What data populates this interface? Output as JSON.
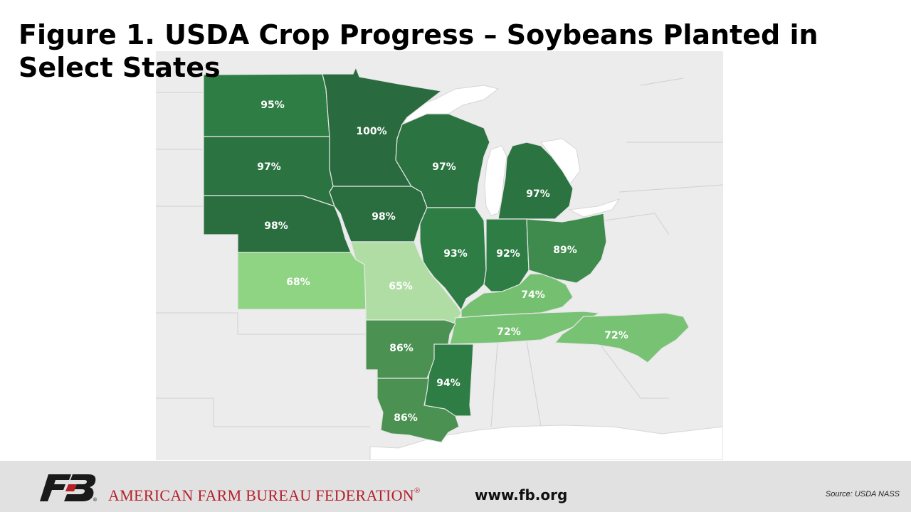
{
  "title": "Figure 1. USDA Crop Progress – Soybeans Planted in Select States",
  "colors": {
    "dark": "#2f6e3f",
    "medium_dark": "#2e7d44",
    "medium": "#4a9152",
    "light": "#7cc27a",
    "lightest": "#a8d99c",
    "background_land": "#ececec",
    "water": "#ffffff",
    "org_red": "#b5202a"
  },
  "states": [
    {
      "id": "ND",
      "value": "95%",
      "color": "#2e7d44"
    },
    {
      "id": "MN",
      "value": "100%",
      "color": "#2a6a3f"
    },
    {
      "id": "SD",
      "value": "97%",
      "color": "#2b7341"
    },
    {
      "id": "WI",
      "value": "97%",
      "color": "#2b7341"
    },
    {
      "id": "MI",
      "value": "97%",
      "color": "#2b7341"
    },
    {
      "id": "NE",
      "value": "98%",
      "color": "#2a6e3f"
    },
    {
      "id": "IA",
      "value": "98%",
      "color": "#2a6e3f"
    },
    {
      "id": "IL",
      "value": "93%",
      "color": "#2e7d44"
    },
    {
      "id": "IN",
      "value": "92%",
      "color": "#2e7d44"
    },
    {
      "id": "OH",
      "value": "89%",
      "color": "#3f8a4d"
    },
    {
      "id": "KS",
      "value": "68%",
      "color": "#8ed483"
    },
    {
      "id": "MO",
      "value": "65%",
      "color": "#b0dda4"
    },
    {
      "id": "KY",
      "value": "74%",
      "color": "#74c070"
    },
    {
      "id": "TN",
      "value": "72%",
      "color": "#78c274"
    },
    {
      "id": "NC",
      "value": "72%",
      "color": "#78c274"
    },
    {
      "id": "AR",
      "value": "86%",
      "color": "#4a9152"
    },
    {
      "id": "MS",
      "value": "94%",
      "color": "#2e7d44"
    },
    {
      "id": "LA",
      "value": "86%",
      "color": "#4a9152"
    }
  ],
  "footer": {
    "org_name": "AMERICAN FARM BUREAU FEDERATION",
    "registered": "®",
    "logo_text": "FB",
    "website": "www.fb.org",
    "source": "Source:  USDA  NASS"
  }
}
